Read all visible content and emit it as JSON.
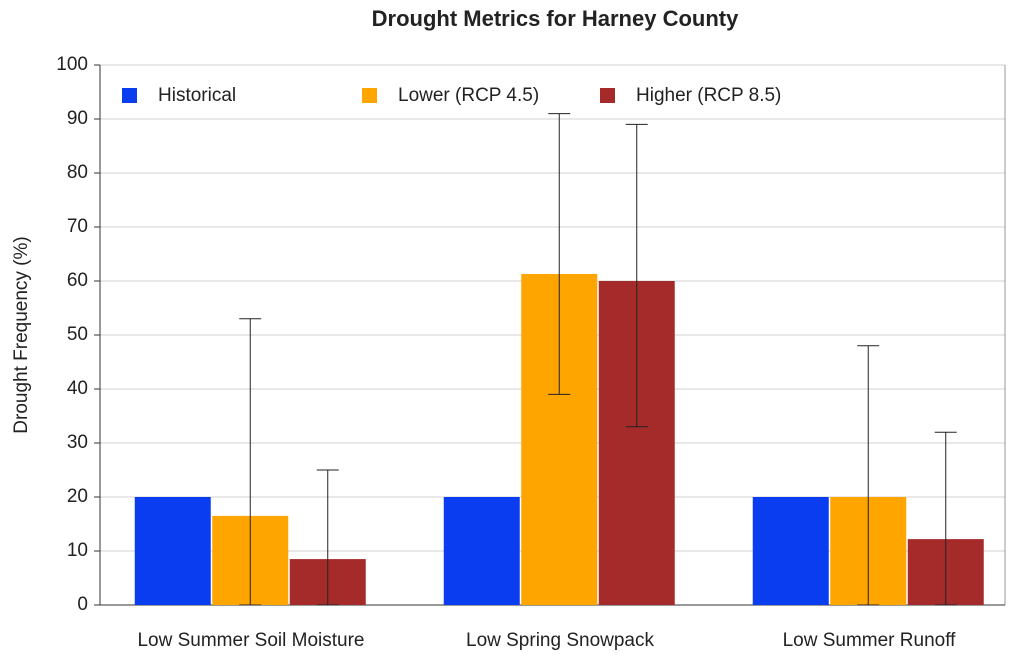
{
  "chart_data": {
    "type": "bar",
    "title": "Drought Metrics for Harney County",
    "y_label": "Drought Frequency (%)",
    "categories": [
      "Low Summer Soil Moisture",
      "Low Spring Snowpack",
      "Low Summer Runoff"
    ],
    "series": [
      {
        "name": "Historical",
        "color": "#0a3cf0",
        "values": [
          20,
          20,
          20
        ]
      },
      {
        "name": "Lower (RCP 4.5)",
        "color": "#ffa500",
        "values": [
          16.5,
          61.3,
          20
        ],
        "lows": [
          0,
          39,
          0
        ],
        "highs": [
          53,
          91,
          48
        ]
      },
      {
        "name": "Higher (RCP 8.5)",
        "color": "#a52a2a",
        "values": [
          8.5,
          60,
          12.2
        ],
        "lows": [
          0,
          33,
          0
        ],
        "highs": [
          25,
          89,
          32
        ]
      }
    ],
    "ylim": [
      0,
      100
    ],
    "yticks": [
      0,
      10,
      20,
      30,
      40,
      50,
      60,
      70,
      80,
      90,
      100
    ],
    "grid": true,
    "legend": "top"
  }
}
